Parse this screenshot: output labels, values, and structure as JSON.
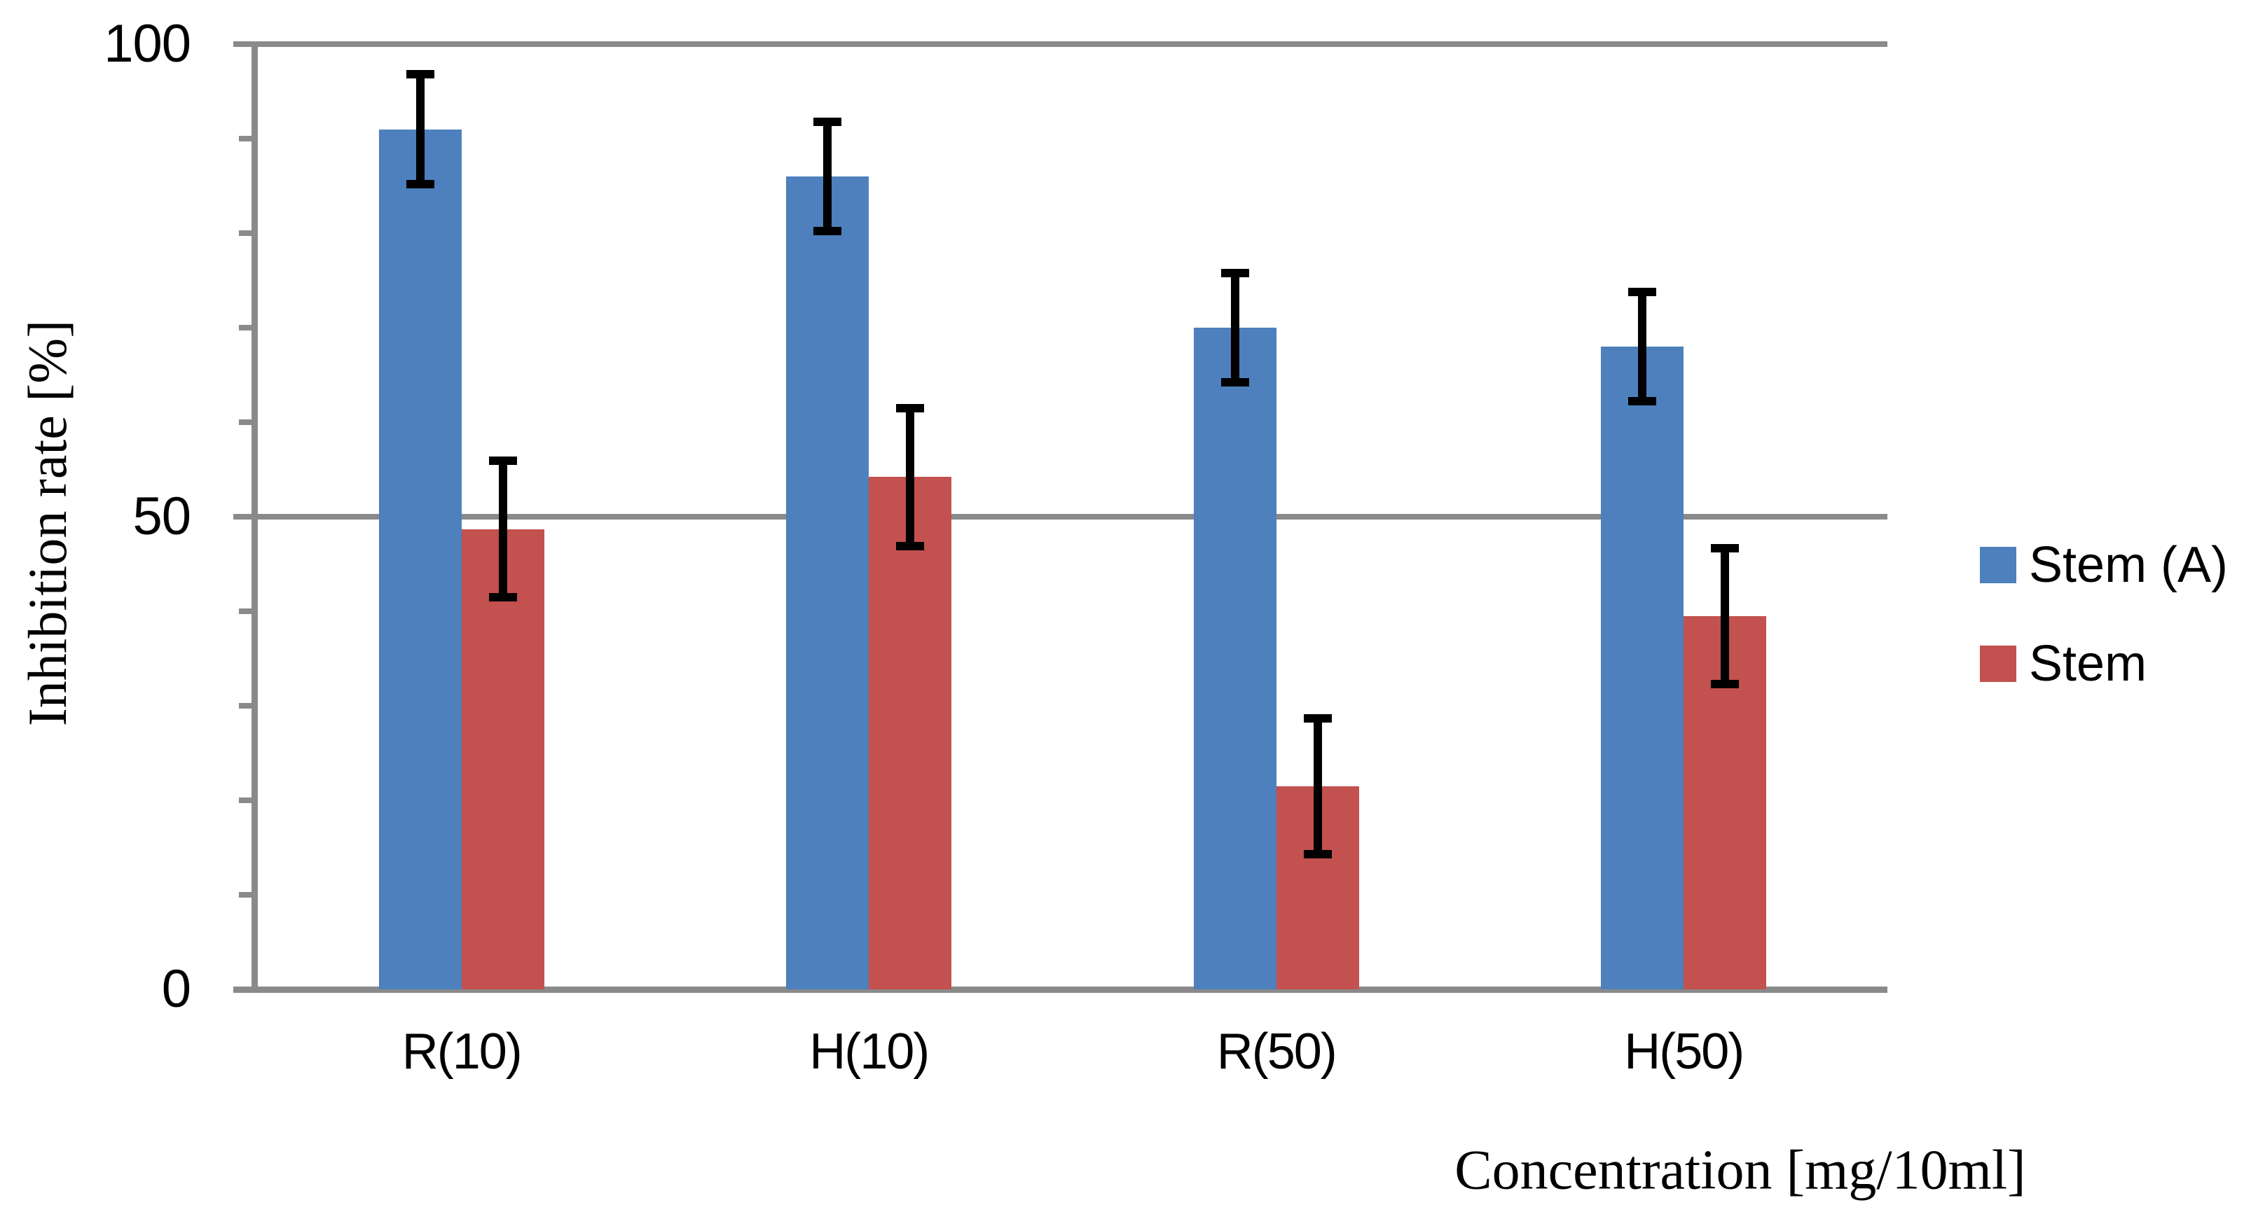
{
  "chart_data": {
    "type": "bar",
    "title": "",
    "categories": [
      "R(10)",
      "H(10)",
      "R(50)",
      "H(50)"
    ],
    "series": [
      {
        "name": "Stem (A)",
        "color": "#4D80BD",
        "values": [
          91,
          86,
          70,
          68
        ],
        "errors": [
          5.8,
          5.8,
          5.8,
          5.8
        ]
      },
      {
        "name": "Stem",
        "color": "#C2514F",
        "values": [
          48.7,
          54.2,
          21.5,
          39.5
        ],
        "errors": [
          7.2,
          7.3,
          7.2,
          7.2
        ]
      }
    ],
    "xlabel": "Concentration [mg/10ml]",
    "ylabel": "Inhibition rate [%]",
    "ylim": [
      0,
      100
    ],
    "ytick_labels": [
      "0",
      "50",
      "100"
    ],
    "ytick_labeled_values": [
      0,
      50,
      100
    ],
    "ytick_minor_values": [
      10,
      20,
      30,
      40,
      60,
      70,
      80,
      90
    ],
    "gridline_values": [
      50,
      100
    ],
    "legend_position": "right",
    "grid": true,
    "axis_color": "#8A8A8A",
    "error_bar_color": "#000000",
    "background_color": "#FFFFFF"
  }
}
